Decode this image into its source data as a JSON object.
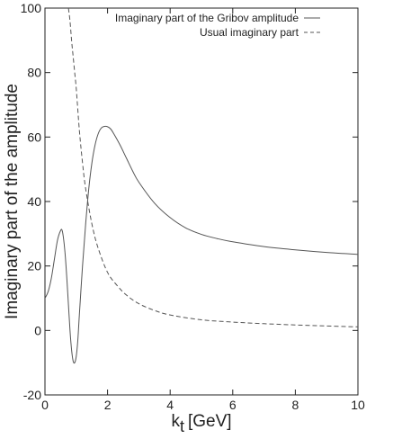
{
  "chart_data": {
    "type": "line",
    "xlabel": "k_t [GeV]",
    "xlabel_main": "k",
    "xlabel_sub": "t",
    "xlabel_unit": "[GeV]",
    "ylabel": "Imaginary part of the amplitude",
    "xlim": [
      0,
      10
    ],
    "ylim": [
      -20,
      100
    ],
    "xticks": [
      0,
      2,
      4,
      6,
      8,
      10
    ],
    "yticks": [
      -20,
      0,
      20,
      40,
      60,
      80,
      100
    ],
    "grid": false,
    "legend_position": "top-right",
    "series": [
      {
        "name": "Imaginary part of the Gribov amplitude",
        "style": "solid",
        "color": "#555555",
        "x": [
          0,
          0.1,
          0.2,
          0.3,
          0.4,
          0.5,
          0.55,
          0.6,
          0.65,
          0.7,
          0.75,
          0.8,
          0.85,
          0.9,
          0.95,
          1.0,
          1.05,
          1.1,
          1.2,
          1.3,
          1.4,
          1.5,
          1.6,
          1.7,
          1.8,
          1.9,
          2.0,
          2.1,
          2.2,
          2.4,
          2.6,
          2.8,
          3.0,
          3.5,
          4.0,
          4.5,
          5.0,
          5.5,
          6.0,
          7.0,
          8.0,
          9.0,
          10.0
        ],
        "y": [
          10,
          12,
          16,
          22,
          28,
          31,
          31,
          28,
          23,
          16,
          8,
          0,
          -6,
          -9.5,
          -10,
          -8,
          -3,
          5,
          20,
          33,
          44,
          52,
          57.5,
          61,
          62.8,
          63.3,
          63.2,
          62.5,
          61,
          57.5,
          53.5,
          49.5,
          46,
          39.5,
          35,
          31.8,
          29.8,
          28.5,
          27.5,
          26,
          25,
          24.2,
          23.6
        ]
      },
      {
        "name": "Usual imaginary part",
        "style": "dashed",
        "color": "#555555",
        "x": [
          1.0,
          1.1,
          1.2,
          1.3,
          1.5,
          1.7,
          2.0,
          2.3,
          2.6,
          3.0,
          3.5,
          4.0,
          5.0,
          6.0,
          7.0,
          8.0,
          9.0,
          10.0
        ],
        "y": [
          75,
          62,
          52,
          44,
          33,
          25.5,
          18,
          14,
          11,
          8.3,
          6.2,
          4.8,
          3.3,
          2.6,
          2.1,
          1.7,
          1.4,
          1.1
        ],
        "steep_rise": {
          "x": [
            0.75,
            0.8,
            0.85,
            0.9,
            0.95
          ],
          "y": [
            100,
            96,
            90,
            85,
            80
          ]
        }
      }
    ]
  }
}
